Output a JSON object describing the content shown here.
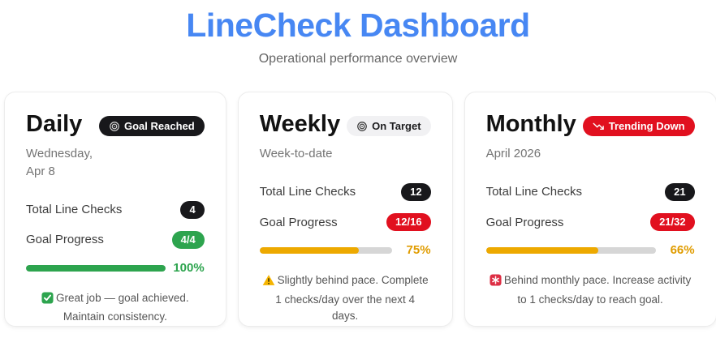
{
  "header": {
    "title": "LineCheck Dashboard",
    "subtitle": "Operational performance overview"
  },
  "colors": {
    "accent_blue": "#4787f3",
    "success_green": "#2da44e",
    "warning_amber": "#eda900",
    "danger_red": "#e1101f",
    "count_pill_black": "#18181b",
    "track_gray": "#d6d6d6"
  },
  "cards": [
    {
      "title": "Daily",
      "badge_label": "Goal Reached",
      "badge_icon": "target-icon",
      "subtitle": "Wednesday, Apr 8",
      "total_label": "Total Line Checks",
      "total_value": "4",
      "progress_label": "Goal Progress",
      "progress_value": "4/4",
      "progress_pct": 100,
      "progress_pct_label": "100%",
      "message_icon": "check-square-icon",
      "message": "Great job — goal achieved. Maintain consistency."
    },
    {
      "title": "Weekly",
      "badge_label": "On Target",
      "badge_icon": "target-icon",
      "subtitle": "Week-to-date",
      "total_label": "Total Line Checks",
      "total_value": "12",
      "progress_label": "Goal Progress",
      "progress_value": "12/16",
      "progress_pct": 75,
      "progress_pct_label": "75%",
      "message_icon": "warning-icon",
      "message": "Slightly behind pace. Complete 1 checks/day over the next 4 days."
    },
    {
      "title": "Monthly",
      "badge_label": "Trending Down",
      "badge_icon": "trend-down-icon",
      "subtitle": "April 2026",
      "total_label": "Total Line Checks",
      "total_value": "21",
      "progress_label": "Goal Progress",
      "progress_value": "21/32",
      "progress_pct": 66,
      "progress_pct_label": "66%",
      "message_icon": "siren-icon",
      "message": "Behind monthly pace. Increase activity to 1 checks/day to reach goal."
    }
  ]
}
